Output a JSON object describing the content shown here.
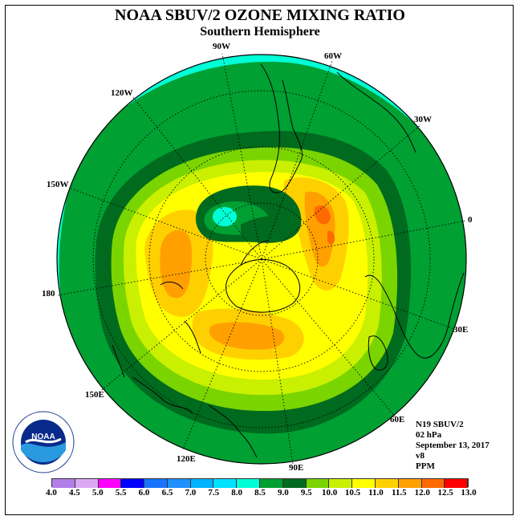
{
  "title": "NOAA SBUV/2 OZONE MIXING RATIO",
  "subtitle": "Southern Hemisphere",
  "longitude_labels": [
    "90W",
    "60W",
    "30W",
    "0",
    "30E",
    "60E",
    "90E",
    "120E",
    "150E",
    "180",
    "150W",
    "120W"
  ],
  "info": {
    "satellite": "N19 SBUV/2",
    "level": "02 hPa",
    "date": "September 13, 2017",
    "version": "v8",
    "units": "PPM"
  },
  "logo": {
    "text": "NOAA",
    "ring_text": "NATIONAL OCEANIC AND ATMOSPHERIC ADMINISTRATION · U.S. DEPARTMENT OF COMMERCE"
  },
  "color_scale": {
    "ticks": [
      "4.0",
      "4.5",
      "5.0",
      "5.5",
      "6.0",
      "6.5",
      "7.0",
      "7.5",
      "8.0",
      "8.5",
      "9.0",
      "9.5",
      "10.0",
      "10.5",
      "11.0",
      "11.5",
      "12.0",
      "12.5",
      "13.0"
    ],
    "colors": [
      "#b27fe8",
      "#dca8f5",
      "#ff00ff",
      "#0000ff",
      "#1874ff",
      "#1e90ff",
      "#00b2ff",
      "#00e0ff",
      "#00ffd6",
      "#00a033",
      "#006a1e",
      "#7ad400",
      "#c8f000",
      "#ffff00",
      "#ffd000",
      "#ffa000",
      "#ff6a00",
      "#ff0000",
      "#8b4513"
    ]
  }
}
